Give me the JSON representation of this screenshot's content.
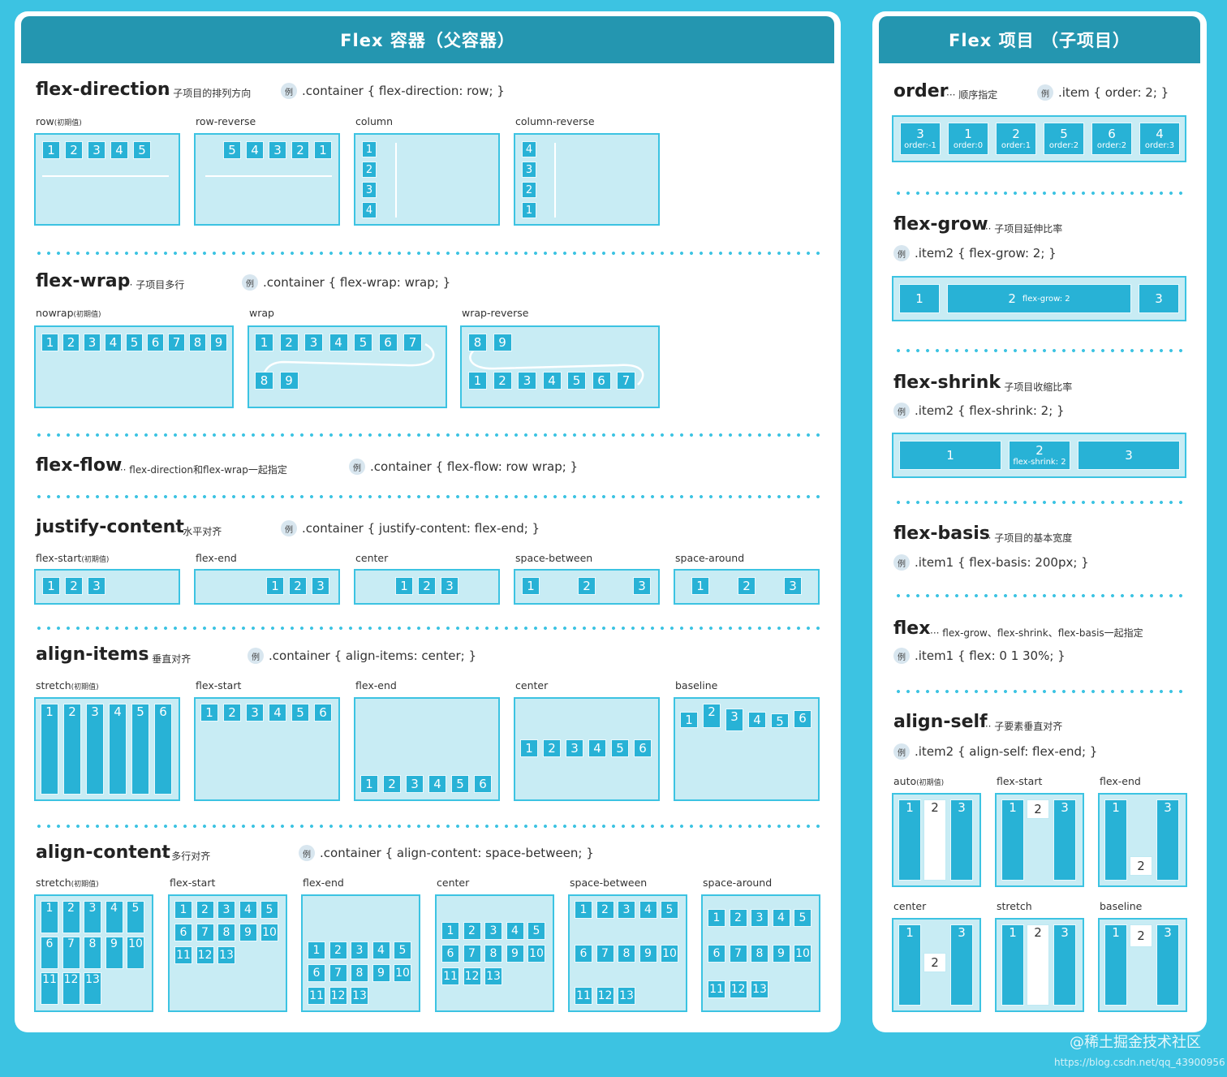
{
  "left": {
    "title": "Flex 容器（父容器）",
    "example_icon": "例",
    "direction": {
      "title": "flex-direction",
      "sub": "··· 子项目的排列方向",
      "ex": ".container { flex-direction: row; }",
      "labels": [
        "row",
        "row-reverse",
        "column",
        "column-reverse"
      ],
      "row": [
        "1",
        "2",
        "3",
        "4",
        "5"
      ],
      "row_reverse": [
        "5",
        "4",
        "3",
        "2",
        "1"
      ],
      "column": [
        "1",
        "2",
        "3",
        "4"
      ],
      "column_reverse": [
        "4",
        "3",
        "2",
        "1"
      ]
    },
    "initial": "(初期值)",
    "wrap": {
      "title": "flex-wrap",
      "sub": "··· 子项目多行",
      "ex": ".container { flex-wrap: wrap; }",
      "labels": [
        "nowrap",
        "wrap",
        "wrap-reverse"
      ],
      "nowrap": [
        "1",
        "2",
        "3",
        "4",
        "5",
        "6",
        "7",
        "8",
        "9"
      ],
      "wrap_top": [
        "1",
        "2",
        "3",
        "4",
        "5",
        "6",
        "7"
      ],
      "wrap_bottom": [
        "8",
        "9"
      ]
    },
    "flow": {
      "title": "flex-flow",
      "sub": "··· flex-direction和flex-wrap一起指定",
      "ex": ".container { flex-flow: row wrap; }"
    },
    "justify": {
      "title": "justify-content",
      "sub": "··· 水平对齐",
      "ex": ".container { justify-content: flex-end; }",
      "labels": [
        "flex-start",
        "flex-end",
        "center",
        "space-between",
        "space-around"
      ],
      "items": [
        "1",
        "2",
        "3"
      ]
    },
    "align_items": {
      "title": "align-items",
      "sub": "··· 垂直对齐",
      "ex": ".container { align-items: center; }",
      "labels": [
        "stretch",
        "flex-start",
        "flex-end",
        "center",
        "baseline"
      ],
      "items": [
        "1",
        "2",
        "3",
        "4",
        "5",
        "6"
      ]
    },
    "align_content": {
      "title": "align-content",
      "sub": "··· 多行对齐",
      "ex": ".container { align-content: space-between; }",
      "labels": [
        "stretch",
        "flex-start",
        "flex-end",
        "center",
        "space-between",
        "space-around"
      ],
      "rows": [
        [
          "1",
          "2",
          "3",
          "4",
          "5"
        ],
        [
          "6",
          "7",
          "8",
          "9",
          "10"
        ],
        [
          "11",
          "12",
          "13"
        ]
      ]
    }
  },
  "right": {
    "title": "Flex 项目 （子项目）",
    "order": {
      "title": "order",
      "sub": "··· 顺序指定",
      "ex": ".item { order: 2; }",
      "items": [
        {
          "n": "3",
          "o": "order:-1"
        },
        {
          "n": "1",
          "o": "order:0"
        },
        {
          "n": "2",
          "o": "order:1"
        },
        {
          "n": "5",
          "o": "order:2"
        },
        {
          "n": "6",
          "o": "order:2"
        },
        {
          "n": "4",
          "o": "order:3"
        }
      ]
    },
    "grow": {
      "title": "flex-grow",
      "sub": "··· 子项目延伸比率",
      "ex": ".item2 { flex-grow: 2; }",
      "items": [
        "1",
        "2",
        "3"
      ],
      "note": "flex-grow: 2"
    },
    "shrink": {
      "title": "flex-shrink",
      "sub": "··· 子项目收缩比率",
      "ex": ".item2 { flex-shrink: 2; }",
      "items": [
        "1",
        "2",
        "3"
      ],
      "note": "flex-shrink: 2"
    },
    "basis": {
      "title": "flex-basis",
      "sub": "··· 子项目的基本宽度",
      "ex": ".item1 { flex-basis: 200px; }"
    },
    "flex": {
      "title": "flex",
      "sub": "··· flex-grow、flex-shrink、flex-basis一起指定",
      "ex": ".item1 { flex: 0 1 30%; }"
    },
    "self": {
      "title": "align-self",
      "sub": "··· 子要素垂直对齐",
      "ex": ".item2 { align-self: flex-end; }",
      "labels": [
        "auto",
        "flex-start",
        "flex-end",
        "center",
        "stretch",
        "baseline"
      ],
      "items": [
        "1",
        "2",
        "3"
      ]
    }
  },
  "watermark": "@稀土掘金技术社区",
  "url": "https://blog.csdn.net/qq_43900956"
}
